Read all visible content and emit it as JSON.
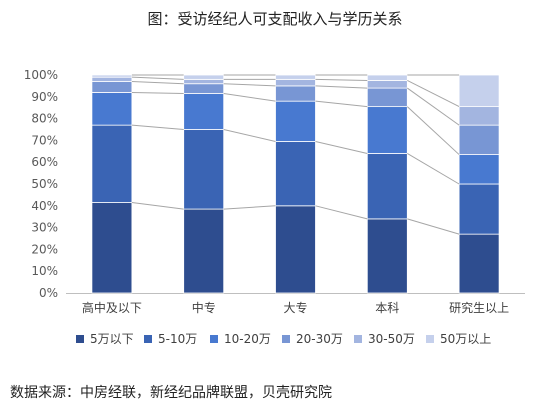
{
  "title": "图：受访经纪人可支配收入与学历关系",
  "source": "数据来源：中房经联，新经纪品牌联盟，贝壳研究院",
  "chart_data": {
    "type": "bar",
    "stacked": true,
    "percent": true,
    "categories": [
      "高中及以下",
      "中专",
      "大专",
      "本科",
      "研究生以上"
    ],
    "ylim": [
      0,
      100
    ],
    "yticks": [
      "0%",
      "10%",
      "20%",
      "30%",
      "40%",
      "50%",
      "60%",
      "70%",
      "80%",
      "90%",
      "100%"
    ],
    "legend_position": "bottom",
    "series_connector_lines": true,
    "series": [
      {
        "name": "5万以下",
        "color": "#2e4d8f",
        "values": [
          41.5,
          38.5,
          40,
          34,
          27
        ]
      },
      {
        "name": "5-10万",
        "color": "#3a64b4",
        "values": [
          35.5,
          36.5,
          29.5,
          30,
          23
        ]
      },
      {
        "name": "10-20万",
        "color": "#4879d0",
        "values": [
          15,
          16.5,
          18.5,
          21.5,
          13.5
        ]
      },
      {
        "name": "20-30万",
        "color": "#7896d4",
        "values": [
          5,
          4.5,
          7,
          8.5,
          13.5
        ]
      },
      {
        "name": "30-50万",
        "color": "#a3b5e0",
        "values": [
          2,
          2,
          3,
          3.5,
          8.5
        ]
      },
      {
        "name": "50万以上",
        "color": "#c5d0ec",
        "values": [
          1,
          2,
          2,
          2.5,
          14.5
        ]
      }
    ]
  }
}
